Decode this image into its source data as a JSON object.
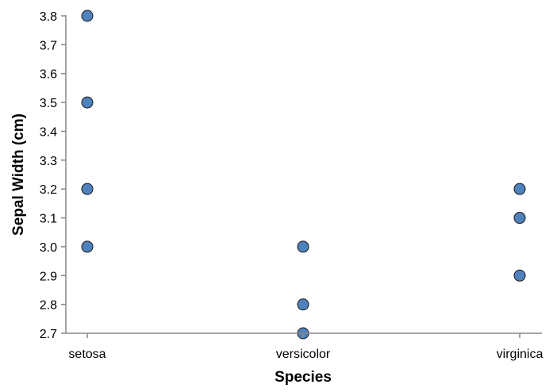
{
  "chart_data": {
    "type": "scatter",
    "xlabel": "Species",
    "ylabel": "Sepal Width (cm)",
    "categories": [
      "setosa",
      "versicolor",
      "virginica"
    ],
    "ylim": [
      2.7,
      3.8
    ],
    "yticks": [
      "2.7",
      "2.8",
      "2.9",
      "3.0",
      "3.1",
      "3.2",
      "3.3",
      "3.4",
      "3.5",
      "3.6",
      "3.7",
      "3.8"
    ],
    "grid": false,
    "point_color": "#4f81bd",
    "points": [
      {
        "x": "setosa",
        "y": 3.8
      },
      {
        "x": "setosa",
        "y": 3.5
      },
      {
        "x": "setosa",
        "y": 3.2
      },
      {
        "x": "setosa",
        "y": 3.0
      },
      {
        "x": "versicolor",
        "y": 3.0
      },
      {
        "x": "versicolor",
        "y": 2.8
      },
      {
        "x": "versicolor",
        "y": 2.7
      },
      {
        "x": "virginica",
        "y": 3.2
      },
      {
        "x": "virginica",
        "y": 3.1
      },
      {
        "x": "virginica",
        "y": 2.9
      }
    ]
  }
}
